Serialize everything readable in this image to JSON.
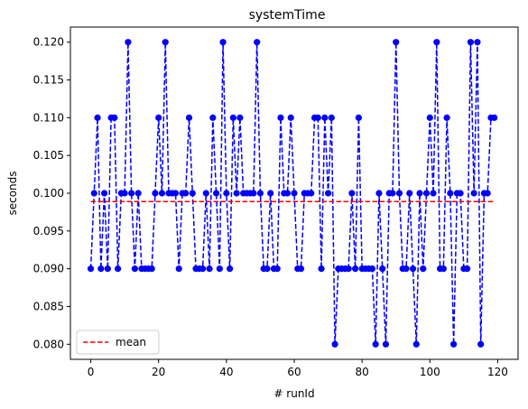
{
  "chart_data": {
    "type": "line",
    "title": "systemTime",
    "xlabel": "# runId",
    "ylabel": "seconds",
    "xlim": [
      -6,
      126
    ],
    "ylim": [
      0.078,
      0.122
    ],
    "xticks": [
      0,
      20,
      40,
      60,
      80,
      100,
      120
    ],
    "yticks": [
      0.08,
      0.085,
      0.09,
      0.095,
      0.1,
      0.105,
      0.11,
      0.115,
      0.12
    ],
    "grid": false,
    "legend": {
      "placement": "lower-left",
      "entries": [
        "mean"
      ]
    },
    "series": [
      {
        "style": "dashed-line-with-circle-markers",
        "color": "#0000ff",
        "x": [
          0,
          1,
          2,
          3,
          4,
          5,
          6,
          7,
          8,
          9,
          10,
          11,
          12,
          13,
          14,
          15,
          16,
          17,
          18,
          19,
          20,
          21,
          22,
          23,
          24,
          25,
          26,
          27,
          28,
          29,
          30,
          31,
          32,
          33,
          34,
          35,
          36,
          37,
          38,
          39,
          40,
          41,
          42,
          43,
          44,
          45,
          46,
          47,
          48,
          49,
          50,
          51,
          52,
          53,
          54,
          55,
          56,
          57,
          58,
          59,
          60,
          61,
          62,
          63,
          64,
          65,
          66,
          67,
          68,
          69,
          70,
          71,
          72,
          73,
          74,
          75,
          76,
          77,
          78,
          79,
          80,
          81,
          82,
          83,
          84,
          85,
          86,
          87,
          88,
          89,
          90,
          91,
          92,
          93,
          94,
          95,
          96,
          97,
          98,
          99,
          100,
          101,
          102,
          103,
          104,
          105,
          106,
          107,
          108,
          109,
          110,
          111,
          112,
          113,
          114,
          115,
          116,
          117,
          118,
          119
        ],
        "y": [
          0.09,
          0.1,
          0.11,
          0.09,
          0.1,
          0.09,
          0.11,
          0.11,
          0.09,
          0.1,
          0.1,
          0.12,
          0.1,
          0.09,
          0.1,
          0.09,
          0.09,
          0.09,
          0.09,
          0.1,
          0.11,
          0.1,
          0.12,
          0.1,
          0.1,
          0.1,
          0.09,
          0.1,
          0.1,
          0.11,
          0.1,
          0.09,
          0.09,
          0.09,
          0.1,
          0.09,
          0.11,
          0.1,
          0.09,
          0.12,
          0.1,
          0.09,
          0.11,
          0.1,
          0.11,
          0.1,
          0.1,
          0.1,
          0.1,
          0.12,
          0.1,
          0.09,
          0.09,
          0.1,
          0.09,
          0.09,
          0.11,
          0.1,
          0.1,
          0.11,
          0.1,
          0.09,
          0.09,
          0.1,
          0.1,
          0.1,
          0.11,
          0.11,
          0.09,
          0.11,
          0.1,
          0.11,
          0.08,
          0.09,
          0.09,
          0.09,
          0.09,
          0.1,
          0.09,
          0.11,
          0.09,
          0.09,
          0.09,
          0.09,
          0.08,
          0.1,
          0.09,
          0.08,
          0.1,
          0.1,
          0.12,
          0.1,
          0.09,
          0.09,
          0.1,
          0.09,
          0.08,
          0.1,
          0.09,
          0.1,
          0.11,
          0.1,
          0.12,
          0.09,
          0.09,
          0.11,
          0.1,
          0.08,
          0.1,
          0.1,
          0.09,
          0.09,
          0.12,
          0.1,
          0.12,
          0.08,
          0.1,
          0.1,
          0.11,
          0.11
        ]
      },
      {
        "name": "mean",
        "style": "dashed-line",
        "color": "#ff0000",
        "x": [
          0,
          119
        ],
        "y": [
          0.0989,
          0.0989
        ]
      }
    ]
  }
}
